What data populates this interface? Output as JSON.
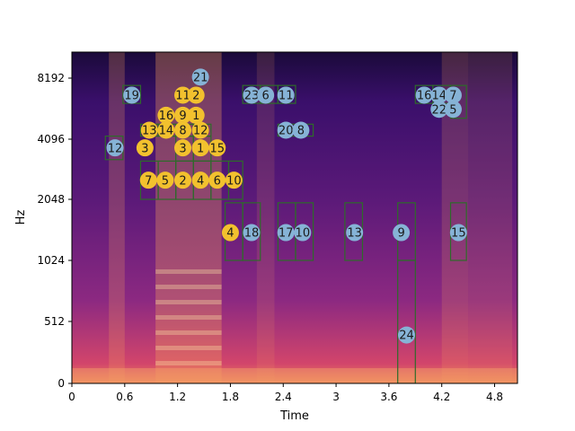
{
  "chart_data": {
    "type": "heatmap",
    "title": "",
    "xlabel": "Time",
    "ylabel": "Hz",
    "xlim": [
      0,
      5.06
    ],
    "ylim": [
      0,
      11025
    ],
    "x_ticks": [
      0,
      0.6,
      1.2,
      1.8,
      2.4,
      3.0,
      3.6,
      4.2,
      4.8
    ],
    "x_tick_labels": [
      "0",
      "0.6",
      "1.2",
      "1.8",
      "2.4",
      "3",
      "3.6",
      "4.2",
      "4.8"
    ],
    "y_ticks": [
      0,
      512,
      1024,
      2048,
      4096,
      8192
    ],
    "y_tick_labels": [
      "0",
      "512",
      "1024",
      "2048",
      "4096",
      "8192"
    ],
    "y_scale": "log-like (mel)",
    "colormap": "magma",
    "colors": {
      "yellow_marker": "#f2c12e",
      "blue_marker": "#86b3d6",
      "box_stroke": "#2e6b2a"
    },
    "boxes": [
      {
        "x0": 0.38,
        "x1": 0.58,
        "y0": 3400,
        "y1": 4300
      },
      {
        "x0": 0.58,
        "x1": 0.78,
        "y0": 6500,
        "y1": 7700
      },
      {
        "x0": 0.78,
        "x1": 0.98,
        "y0": 2048,
        "y1": 3350
      },
      {
        "x0": 0.98,
        "x1": 1.18,
        "y0": 2048,
        "y1": 3350
      },
      {
        "x0": 1.18,
        "x1": 1.38,
        "y0": 2048,
        "y1": 3350
      },
      {
        "x0": 1.38,
        "x1": 1.58,
        "y0": 2048,
        "y1": 3350
      },
      {
        "x0": 1.58,
        "x1": 1.78,
        "y0": 2048,
        "y1": 3350
      },
      {
        "x0": 1.78,
        "x1": 1.94,
        "y0": 2048,
        "y1": 3350
      },
      {
        "x0": 0.78,
        "x1": 0.98,
        "y0": 4300,
        "y1": 5100
      },
      {
        "x0": 0.98,
        "x1": 1.18,
        "y0": 4300,
        "y1": 5100
      },
      {
        "x0": 1.18,
        "x1": 1.38,
        "y0": 4300,
        "y1": 5100
      },
      {
        "x0": 1.38,
        "x1": 1.58,
        "y0": 4300,
        "y1": 5100
      },
      {
        "x0": 1.18,
        "x1": 1.38,
        "y0": 3350,
        "y1": 4300
      },
      {
        "x0": 1.38,
        "x1": 1.58,
        "y0": 3350,
        "y1": 4300
      },
      {
        "x0": 1.74,
        "x1": 1.94,
        "y0": 1024,
        "y1": 1990
      },
      {
        "x0": 1.94,
        "x1": 2.14,
        "y0": 1024,
        "y1": 1990
      },
      {
        "x0": 1.94,
        "x1": 2.14,
        "y0": 6500,
        "y1": 7700
      },
      {
        "x0": 2.14,
        "x1": 2.34,
        "y0": 6500,
        "y1": 7700
      },
      {
        "x0": 2.34,
        "x1": 2.54,
        "y0": 6500,
        "y1": 7700
      },
      {
        "x0": 2.34,
        "x1": 2.54,
        "y0": 1024,
        "y1": 1990
      },
      {
        "x0": 2.54,
        "x1": 2.74,
        "y0": 1024,
        "y1": 1990
      },
      {
        "x0": 2.34,
        "x1": 2.54,
        "y0": 4300,
        "y1": 5100
      },
      {
        "x0": 2.54,
        "x1": 2.74,
        "y0": 4300,
        "y1": 5100
      },
      {
        "x0": 3.1,
        "x1": 3.3,
        "y0": 1024,
        "y1": 1990
      },
      {
        "x0": 3.7,
        "x1": 3.9,
        "y0": 1024,
        "y1": 1990
      },
      {
        "x0": 3.7,
        "x1": 3.9,
        "y0": 0,
        "y1": 1024
      },
      {
        "x0": 3.9,
        "x1": 4.1,
        "y0": 6500,
        "y1": 7700
      },
      {
        "x0": 4.1,
        "x1": 4.3,
        "y0": 6500,
        "y1": 7700
      },
      {
        "x0": 4.3,
        "x1": 4.48,
        "y0": 5500,
        "y1": 7700
      },
      {
        "x0": 4.3,
        "x1": 4.48,
        "y0": 1024,
        "y1": 1990
      }
    ],
    "markers": [
      {
        "label": "12",
        "x": 0.49,
        "y": 3800,
        "color": "blue"
      },
      {
        "label": "19",
        "x": 0.68,
        "y": 7050,
        "color": "blue"
      },
      {
        "label": "3",
        "x": 0.83,
        "y": 3800,
        "color": "yellow"
      },
      {
        "label": "13",
        "x": 0.88,
        "y": 4700,
        "color": "yellow"
      },
      {
        "label": "7",
        "x": 0.87,
        "y": 2700,
        "color": "yellow"
      },
      {
        "label": "16",
        "x": 1.07,
        "y": 5700,
        "color": "yellow"
      },
      {
        "label": "14",
        "x": 1.07,
        "y": 4700,
        "color": "yellow"
      },
      {
        "label": "5",
        "x": 1.06,
        "y": 2700,
        "color": "yellow"
      },
      {
        "label": "11",
        "x": 1.26,
        "y": 7050,
        "color": "yellow"
      },
      {
        "label": "2",
        "x": 1.41,
        "y": 7050,
        "color": "yellow"
      },
      {
        "label": "21",
        "x": 1.46,
        "y": 8300,
        "color": "blue"
      },
      {
        "label": "9",
        "x": 1.26,
        "y": 5700,
        "color": "yellow"
      },
      {
        "label": "1",
        "x": 1.41,
        "y": 5700,
        "color": "yellow"
      },
      {
        "label": "8",
        "x": 1.26,
        "y": 4700,
        "color": "yellow"
      },
      {
        "label": "12",
        "x": 1.46,
        "y": 4700,
        "color": "yellow"
      },
      {
        "label": "3",
        "x": 1.26,
        "y": 3800,
        "color": "yellow"
      },
      {
        "label": "1",
        "x": 1.46,
        "y": 3800,
        "color": "yellow"
      },
      {
        "label": "15",
        "x": 1.65,
        "y": 3800,
        "color": "yellow"
      },
      {
        "label": "2",
        "x": 1.26,
        "y": 2700,
        "color": "yellow"
      },
      {
        "label": "4",
        "x": 1.46,
        "y": 2700,
        "color": "yellow"
      },
      {
        "label": "6",
        "x": 1.65,
        "y": 2700,
        "color": "yellow"
      },
      {
        "label": "10",
        "x": 1.84,
        "y": 2700,
        "color": "yellow"
      },
      {
        "label": "4",
        "x": 1.8,
        "y": 1490,
        "color": "yellow"
      },
      {
        "label": "18",
        "x": 2.04,
        "y": 1490,
        "color": "blue"
      },
      {
        "label": "23",
        "x": 2.04,
        "y": 7050,
        "color": "blue"
      },
      {
        "label": "6",
        "x": 2.2,
        "y": 7050,
        "color": "blue"
      },
      {
        "label": "11",
        "x": 2.43,
        "y": 7050,
        "color": "blue"
      },
      {
        "label": "20",
        "x": 2.43,
        "y": 4700,
        "color": "blue"
      },
      {
        "label": "8",
        "x": 2.6,
        "y": 4700,
        "color": "blue"
      },
      {
        "label": "17",
        "x": 2.43,
        "y": 1490,
        "color": "blue"
      },
      {
        "label": "10",
        "x": 2.62,
        "y": 1490,
        "color": "blue"
      },
      {
        "label": "13",
        "x": 3.21,
        "y": 1490,
        "color": "blue"
      },
      {
        "label": "9",
        "x": 3.74,
        "y": 1490,
        "color": "blue"
      },
      {
        "label": "24",
        "x": 3.8,
        "y": 400,
        "color": "blue"
      },
      {
        "label": "16",
        "x": 4.0,
        "y": 7050,
        "color": "blue"
      },
      {
        "label": "14",
        "x": 4.17,
        "y": 7050,
        "color": "blue"
      },
      {
        "label": "7",
        "x": 4.33,
        "y": 7050,
        "color": "blue"
      },
      {
        "label": "22",
        "x": 4.17,
        "y": 6100,
        "color": "blue"
      },
      {
        "label": "5",
        "x": 4.33,
        "y": 6100,
        "color": "blue"
      },
      {
        "label": "15",
        "x": 4.39,
        "y": 1490,
        "color": "blue"
      }
    ]
  }
}
